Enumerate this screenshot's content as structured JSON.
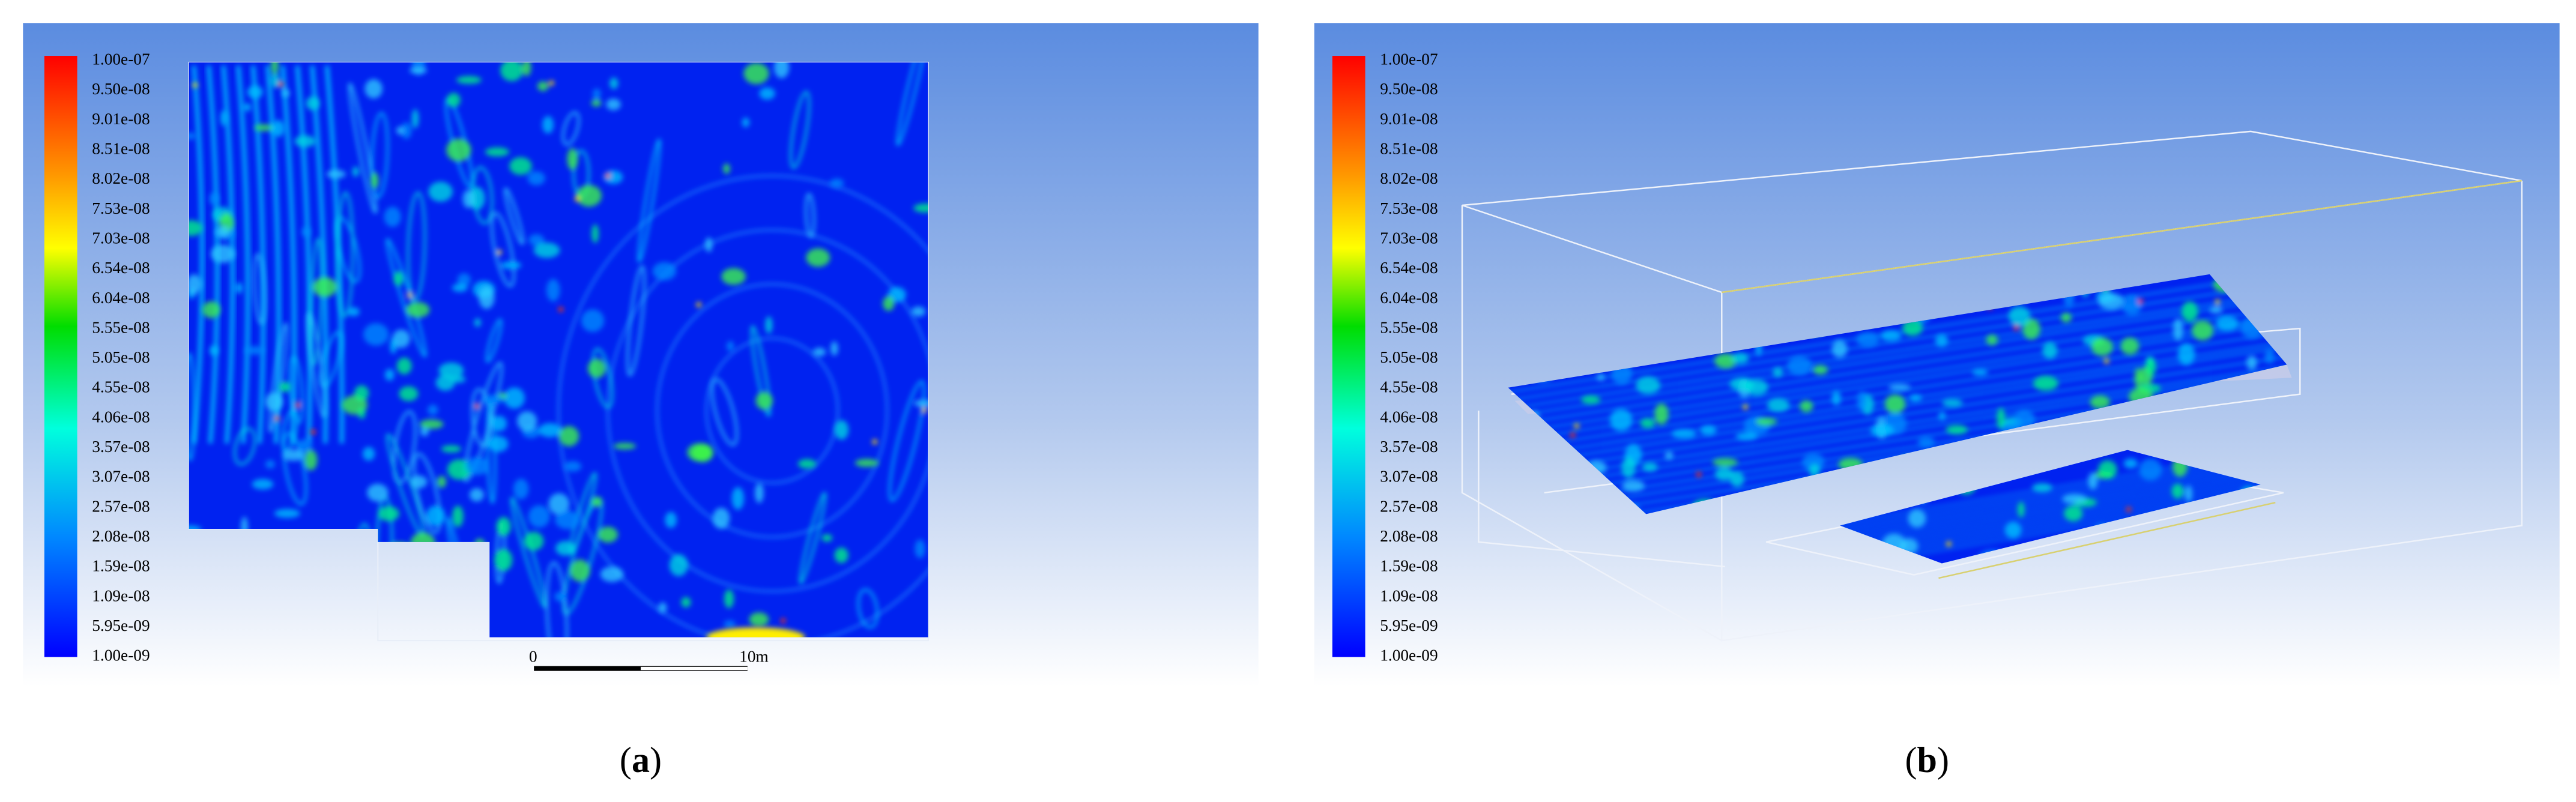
{
  "panels": [
    {
      "caption": "(a)",
      "colorbar": {
        "labels": [
          "1.00e-07",
          "9.50e-08",
          "9.01e-08",
          "8.51e-08",
          "8.02e-08",
          "7.53e-08",
          "7.03e-08",
          "6.54e-08",
          "6.04e-08",
          "5.55e-08",
          "5.05e-08",
          "4.55e-08",
          "4.06e-08",
          "3.57e-08",
          "3.07e-08",
          "2.57e-08",
          "2.08e-08",
          "1.59e-08",
          "1.09e-08",
          "5.95e-09",
          "1.00e-09"
        ]
      },
      "scale_bar": {
        "start": "0",
        "end": "10m"
      }
    },
    {
      "caption": "(b)",
      "colorbar": {
        "labels": [
          "1.00e-07",
          "9.50e-08",
          "9.01e-08",
          "8.51e-08",
          "8.02e-08",
          "7.53e-08",
          "7.03e-08",
          "6.54e-08",
          "6.04e-08",
          "5.55e-08",
          "5.05e-08",
          "4.55e-08",
          "4.06e-08",
          "3.57e-08",
          "3.07e-08",
          "2.57e-08",
          "2.08e-08",
          "1.59e-08",
          "1.09e-08",
          "5.95e-09",
          "1.00e-09"
        ]
      }
    }
  ]
}
